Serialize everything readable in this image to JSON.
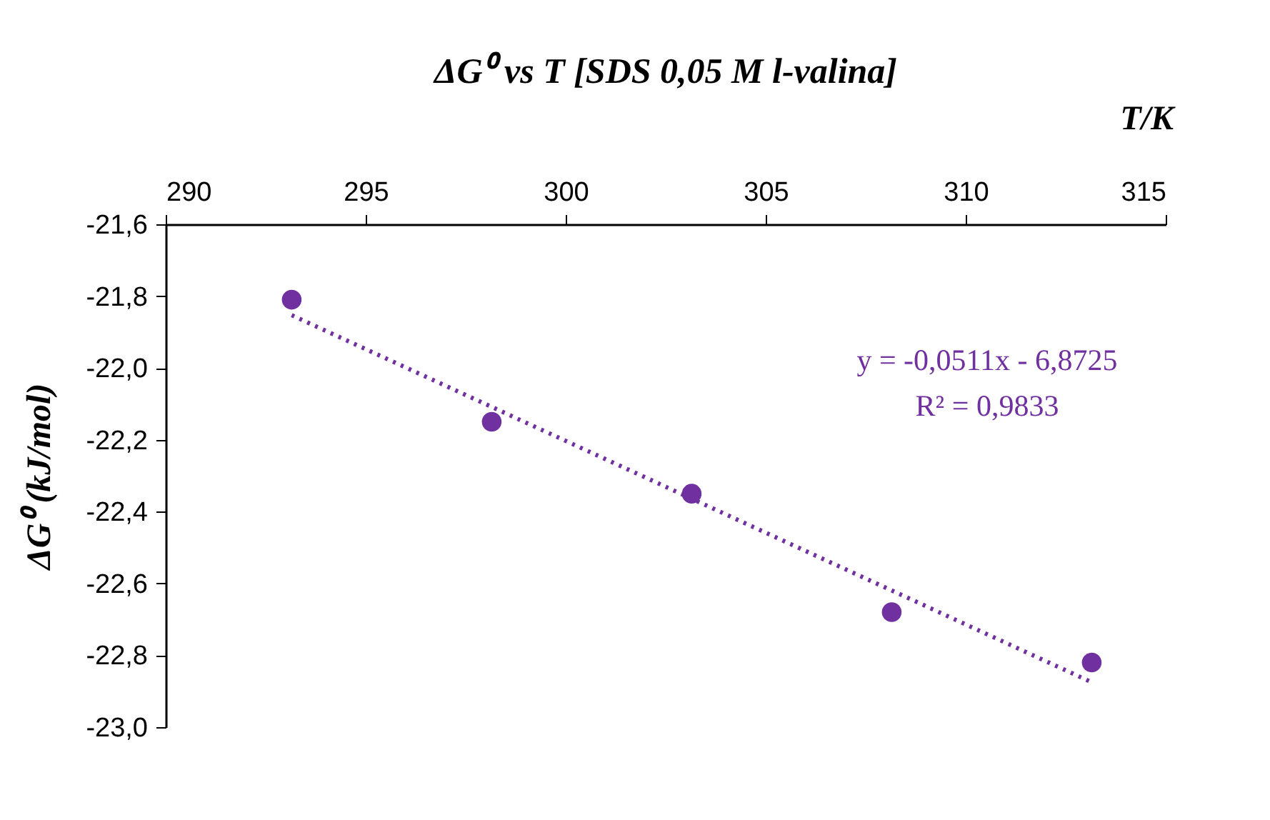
{
  "chart_data": {
    "type": "scatter",
    "title": "ΔG⁰  vs T [SDS 0,05 M l-valina]",
    "xlabel": "T/K",
    "ylabel": "ΔG⁰ (kJ/mol)",
    "x": [
      293.15,
      298.15,
      303.15,
      308.15,
      313.15
    ],
    "series": [
      {
        "color": "#7030a0",
        "marker": "circle",
        "values": [
          -21.81,
          -22.15,
          -22.35,
          -22.68,
          -22.82
        ]
      },
      {
        "type": "line",
        "color": "#7030a0",
        "line_style": "dotted",
        "marker": "none",
        "x": [
          293.15,
          313.15
        ],
        "values": [
          -21.853,
          -22.875
        ]
      }
    ],
    "xlim": [
      290,
      315
    ],
    "xticks": [
      290,
      295,
      300,
      305,
      310,
      315
    ],
    "ylim": [
      -23.0,
      -21.6
    ],
    "yticks": [
      {
        "value": -23.0,
        "label": "-23,0"
      },
      {
        "value": -22.8,
        "label": "-22,8"
      },
      {
        "value": -22.6,
        "label": "-22,6"
      },
      {
        "value": -22.4,
        "label": "-22,4"
      },
      {
        "value": -22.2,
        "label": "-22,2"
      },
      {
        "value": -22.0,
        "label": "-22,0"
      },
      {
        "value": -21.8,
        "label": "-21,8"
      },
      {
        "value": -21.6,
        "label": "-21,6"
      }
    ],
    "annotations": [
      "y = -0,0511x - 6,8725",
      "R² = 0,9833"
    ],
    "grid": false
  }
}
